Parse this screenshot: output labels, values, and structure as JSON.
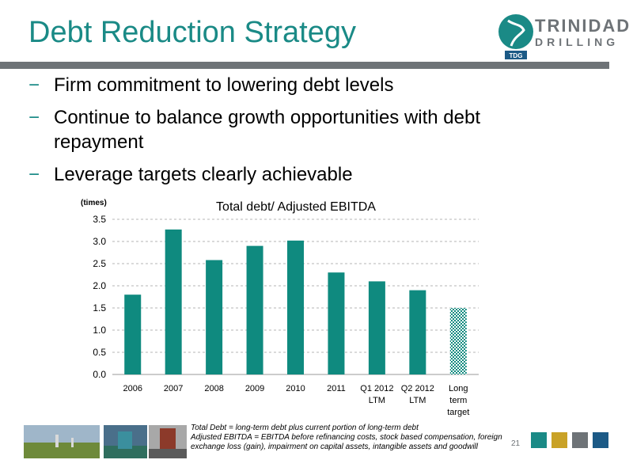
{
  "slide": {
    "title": "Debt Reduction Strategy",
    "page_number": "21",
    "bullets": [
      "Firm commitment to lowering debt levels",
      "Continue to balance growth opportunities with debt repayment",
      "Leverage targets clearly achievable"
    ],
    "bullet_marker": "−",
    "footnotes": [
      "Total Debt = long-term debt plus current portion of long-term debt",
      "Adjusted EBITDA = EBITDA before refinancing costs, stock based compensation, foreign exchange loss (gain), impairment on capital assets, intangible assets and goodwill"
    ]
  },
  "logo": {
    "line1": "TRINIDAD",
    "line2": "DRILLING",
    "badge": "TDG"
  },
  "colors": {
    "accent": "#1a8a86",
    "bar": "#0f8a7f",
    "rule": "#6e7377",
    "square1": "#1a8a86",
    "square2": "#c9a227",
    "square3": "#6e7377",
    "square4": "#1c5a86"
  },
  "chart_data": {
    "type": "bar",
    "title": "Total debt/ Adjusted EBITDA",
    "ylabel": "(times)",
    "ylim": [
      0,
      3.5
    ],
    "yticks": [
      "0.0",
      "0.5",
      "1.0",
      "1.5",
      "2.0",
      "2.5",
      "3.0",
      "3.5"
    ],
    "grid": true,
    "categories": [
      [
        "2006"
      ],
      [
        "2007"
      ],
      [
        "2008"
      ],
      [
        "2009"
      ],
      [
        "2010"
      ],
      [
        "2011"
      ],
      [
        "Q1 2012",
        "LTM"
      ],
      [
        "Q2 2012",
        "LTM"
      ],
      [
        "Long",
        "term",
        "target"
      ]
    ],
    "values": [
      1.8,
      3.27,
      2.58,
      2.9,
      3.02,
      2.3,
      2.1,
      1.9,
      1.5
    ],
    "patterned": [
      false,
      false,
      false,
      false,
      false,
      false,
      false,
      false,
      true
    ]
  }
}
